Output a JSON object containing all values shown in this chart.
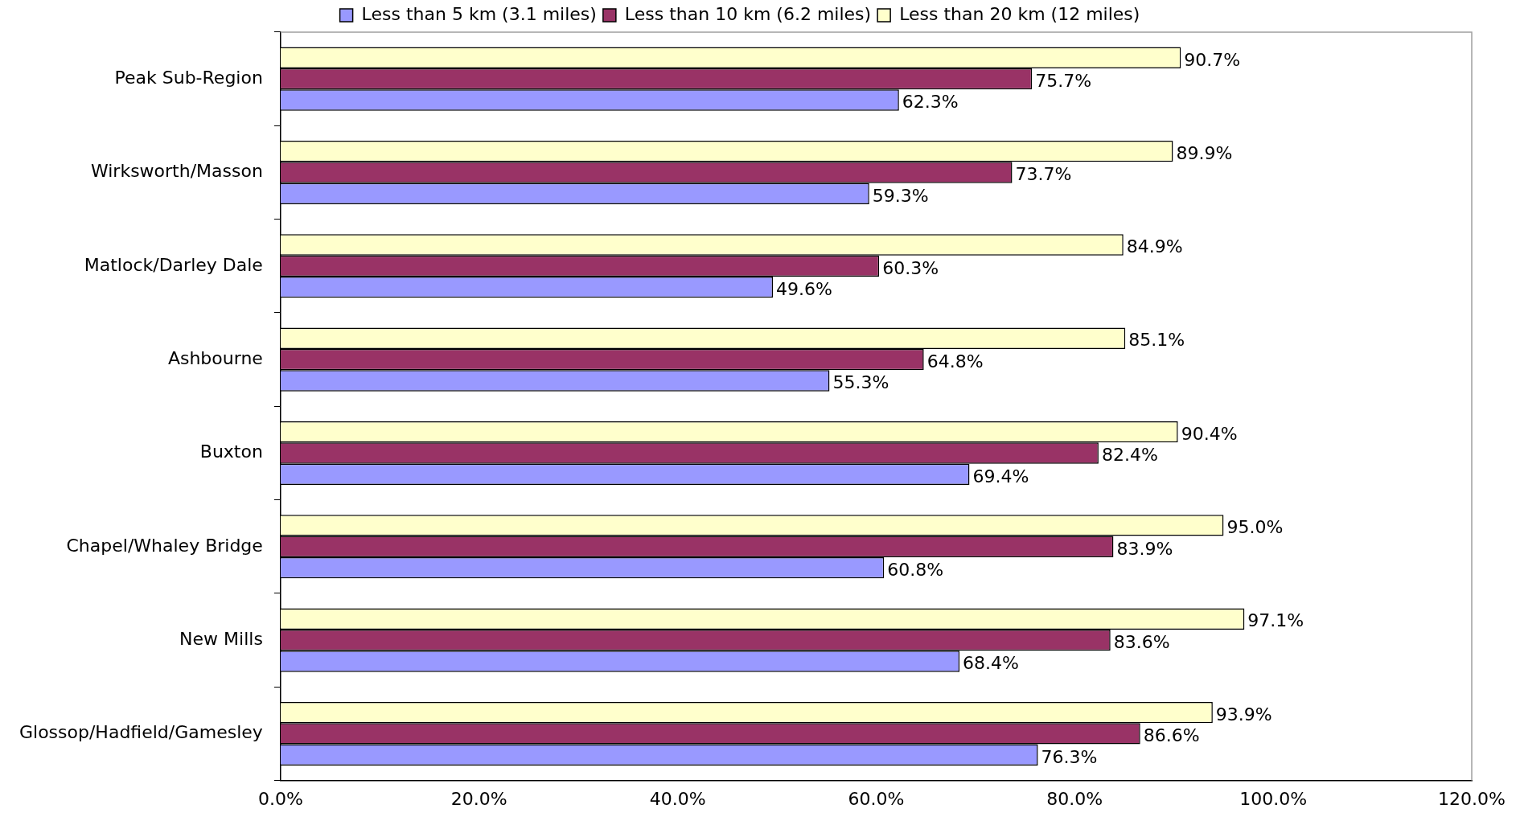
{
  "chart_data": {
    "type": "bar",
    "orientation": "horizontal",
    "legend": "top",
    "grid": false,
    "data_labels": false,
    "categories": [
      "Peak Sub-Region",
      "Wirksworth/Masson",
      "Matlock/Darley Dale",
      "Ashbourne",
      "Buxton",
      "Chapel/Whaley Bridge",
      "New Mills",
      "Glossop/Hadfield/Gamesley"
    ],
    "series": [
      {
        "name": "Less than 5 km (3.1 miles)",
        "color": "#9999ff",
        "values": [
          62.3,
          59.3,
          49.6,
          55.3,
          69.4,
          60.8,
          68.4,
          76.3
        ],
        "value_labels": [
          "62.3%",
          "59.3%",
          "49.6%",
          "55.3%",
          "69.4%",
          "60.8%",
          "68.4%",
          "76.3%"
        ]
      },
      {
        "name": "Less than 10 km (6.2 miles)",
        "color": "#993366",
        "values": [
          75.7,
          73.7,
          60.3,
          64.8,
          82.4,
          83.9,
          83.6,
          86.6
        ],
        "value_labels": [
          "75.7%",
          "73.7%",
          "60.3%",
          "64.8%",
          "82.4%",
          "83.9%",
          "83.6%",
          "86.6%"
        ]
      },
      {
        "name": "Less than 20 km (12 miles)",
        "color": "#ffffcc",
        "values": [
          90.7,
          89.9,
          84.9,
          85.1,
          90.4,
          95.0,
          97.1,
          93.9
        ],
        "value_labels": [
          "90.7%",
          "89.9%",
          "84.9%",
          "85.1%",
          "90.4%",
          "95.0%",
          "97.1%",
          "93.9%"
        ]
      }
    ],
    "xlim": [
      0,
      120
    ],
    "xticks": [
      {
        "value": 0,
        "label": "0.0%"
      },
      {
        "value": 20,
        "label": "20.0%"
      },
      {
        "value": 40,
        "label": "40.0%"
      },
      {
        "value": 60,
        "label": "60.0%"
      },
      {
        "value": 80,
        "label": "80.0%"
      },
      {
        "value": 100,
        "label": "100.0%"
      },
      {
        "value": 120,
        "label": "120.0%"
      }
    ]
  }
}
